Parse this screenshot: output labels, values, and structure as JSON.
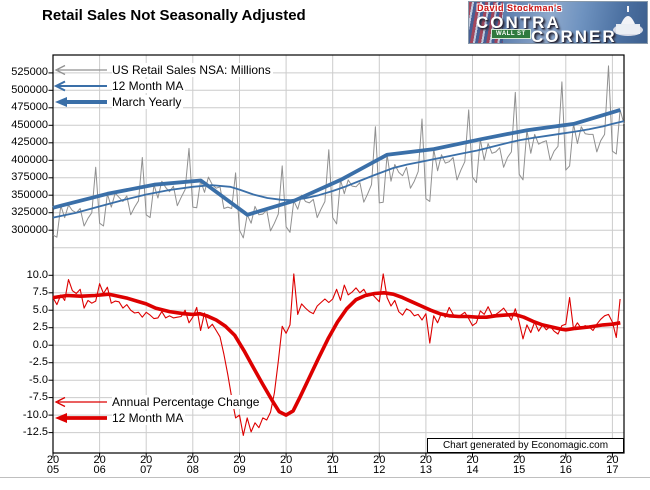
{
  "header": {
    "title": "Retail Sales Not Seasonally Adjusted"
  },
  "logo": {
    "line1": "David Stockman's",
    "line2": "CONTRA",
    "line3": "CORNER",
    "sign": "WALL ST"
  },
  "footer_note": "Chart generated by Economagic.com",
  "chart_data": {
    "type": "line",
    "title": "Retail Sales Not Seasonally Adjusted",
    "x": {
      "years": [
        "2005",
        "2006",
        "2007",
        "2008",
        "2009",
        "2010",
        "2011",
        "2012",
        "2013",
        "2014",
        "2015",
        "2016",
        "2017"
      ],
      "min": 2005,
      "max": 2017.25
    },
    "colors": {
      "sales_line": "#909090",
      "blue": "#3a6fa8",
      "red": "#dd0000",
      "grid": "#cccccc",
      "frame": "#000000"
    },
    "top_panel": {
      "ylabel": "US Retail Sales NSA: Millions",
      "y_ticks": [
        525000,
        500000,
        475000,
        450000,
        425000,
        400000,
        375000,
        350000,
        325000,
        300000
      ],
      "ylim": [
        268000,
        551000
      ],
      "legend": [
        {
          "label": "US Retail Sales NSA: Millions"
        },
        {
          "label": "12 Month MA"
        },
        {
          "label": "March Yearly"
        }
      ],
      "series": {
        "retail_sales_nsa": {
          "start": 2005,
          "freq": "monthly",
          "values": [
            293000,
            290000,
            335000,
            318000,
            336000,
            328000,
            325000,
            331000,
            306000,
            317000,
            325000,
            390000,
            310000,
            306000,
            352000,
            333000,
            353000,
            347000,
            341000,
            349000,
            322000,
            333000,
            342000,
            404000,
            322000,
            318000,
            365000,
            346000,
            370000,
            361000,
            355000,
            363000,
            335000,
            347000,
            358000,
            417000,
            333000,
            332000,
            371000,
            354000,
            376000,
            365000,
            360000,
            362000,
            331000,
            333000,
            331000,
            382000,
            300000,
            289000,
            322000,
            310000,
            334000,
            322000,
            323000,
            329000,
            299000,
            310000,
            323000,
            392000,
            305000,
            297000,
            342000,
            330000,
            350000,
            341000,
            339000,
            344000,
            318000,
            330000,
            341000,
            415000,
            318000,
            309000,
            372000,
            352000,
            372000,
            363000,
            362000,
            368000,
            340000,
            352000,
            365000,
            448000,
            339000,
            340000,
            408000,
            370000,
            394000,
            383000,
            378000,
            390000,
            360000,
            370000,
            384000,
            459000,
            345000,
            341000,
            416000,
            385000,
            408000,
            396000,
            398000,
            404000,
            372000,
            386000,
            398000,
            472000,
            376000,
            368000,
            430000,
            400000,
            424000,
            410000,
            412000,
            418000,
            390000,
            404000,
            412000,
            497000,
            380000,
            372000,
            443000,
            410000,
            437000,
            423000,
            426000,
            428000,
            400000,
            413000,
            420000,
            512000,
            386000,
            392000,
            452000,
            424000,
            448000,
            438000,
            437000,
            437000,
            412000,
            428000,
            437000,
            535000,
            413000,
            409000,
            472000,
            452000
          ]
        },
        "ma_12_month": {
          "points": [
            [
              2005.0,
              318000
            ],
            [
              2005.5,
              325000
            ],
            [
              2006.0,
              334000
            ],
            [
              2006.5,
              343000
            ],
            [
              2007.0,
              351000
            ],
            [
              2007.5,
              357500
            ],
            [
              2008.0,
              362000
            ],
            [
              2008.4,
              364500
            ],
            [
              2008.8,
              362000
            ],
            [
              2009.0,
              358000
            ],
            [
              2009.3,
              351000
            ],
            [
              2009.6,
              346000
            ],
            [
              2009.9,
              343500
            ],
            [
              2010.1,
              343000
            ],
            [
              2010.4,
              345500
            ],
            [
              2010.7,
              350000
            ],
            [
              2011.0,
              356000
            ],
            [
              2011.3,
              363000
            ],
            [
              2011.6,
              371000
            ],
            [
              2011.9,
              379000
            ],
            [
              2012.1,
              384000
            ],
            [
              2012.3,
              389000
            ],
            [
              2012.6,
              394000
            ],
            [
              2012.9,
              398000
            ],
            [
              2013.2,
              402000
            ],
            [
              2013.5,
              406000
            ],
            [
              2013.8,
              410000
            ],
            [
              2014.1,
              414000
            ],
            [
              2014.4,
              419000
            ],
            [
              2014.7,
              424000
            ],
            [
              2015.0,
              428500
            ],
            [
              2015.3,
              432000
            ],
            [
              2015.6,
              435000
            ],
            [
              2015.9,
              438000
            ],
            [
              2016.2,
              441000
            ],
            [
              2016.5,
              444500
            ],
            [
              2016.8,
              448500
            ],
            [
              2017.0,
              452000
            ],
            [
              2017.25,
              456000
            ]
          ]
        },
        "march_yearly": {
          "points": [
            [
              2005.0,
              332000
            ],
            [
              2005.17,
              335000
            ],
            [
              2006.17,
              352000
            ],
            [
              2007.17,
              365000
            ],
            [
              2008.17,
              371000
            ],
            [
              2009.17,
              322000
            ],
            [
              2010.17,
              342000
            ],
            [
              2011.17,
              372000
            ],
            [
              2012.17,
              408000
            ],
            [
              2013.17,
              416000
            ],
            [
              2014.17,
              430000
            ],
            [
              2015.17,
              443000
            ],
            [
              2016.17,
              452000
            ],
            [
              2017.17,
              472000
            ]
          ]
        }
      }
    },
    "bottom_panel": {
      "ylabel": "Annual Percentage Change",
      "y_ticks": [
        "10.0",
        "7.5",
        "5.0",
        "2.5",
        "0.0",
        "-2.5",
        "-5.0",
        "-7.5",
        "-10.0",
        "-12.5"
      ],
      "ylim": [
        -15.4,
        12.9
      ],
      "legend": [
        {
          "label": "Annual Percentage Change"
        },
        {
          "label": "12 Month MA"
        }
      ],
      "series": {
        "annual_pct_change": {
          "start": 2005,
          "freq": "monthly",
          "values": [
            6.8,
            5.8,
            7.2,
            6.4,
            9.4,
            7.8,
            7.4,
            8.0,
            5.3,
            6.4,
            6.0,
            6.3,
            8.8,
            7.4,
            8.3,
            6.0,
            6.3,
            6.2,
            5.3,
            5.8,
            5.0,
            4.6,
            4.7,
            4.0,
            4.7,
            4.3,
            3.8,
            3.9,
            4.8,
            3.9,
            4.2,
            3.9,
            4.0,
            4.1,
            5.0,
            3.2,
            4.0,
            5.4,
            2.1,
            4.6,
            2.4,
            3.0,
            2.1,
            1.2,
            -1.3,
            -4.2,
            -7.5,
            -10.4,
            -10.0,
            -12.9,
            -10.4,
            -12.4,
            -11.1,
            -11.8,
            -10.4,
            -10.7,
            -9.6,
            -6.8,
            -2.3,
            2.7,
            1.7,
            2.9,
            10.2,
            4.4,
            5.9,
            5.3,
            4.8,
            4.5,
            5.6,
            6.1,
            6.6,
            6.1,
            6.6,
            8.0,
            6.4,
            8.6,
            7.2,
            7.6,
            8.2,
            7.5,
            8.0,
            7.0,
            7.4,
            6.8,
            6.2,
            10.2,
            6.8,
            5.6,
            6.4,
            4.8,
            4.3,
            5.2,
            4.9,
            4.2,
            4.4,
            3.6,
            4.5,
            0.3,
            4.2,
            3.2,
            4.6,
            4.0,
            5.4,
            4.4,
            4.0,
            4.3,
            4.7,
            3.8,
            2.8,
            3.2,
            4.9,
            4.4,
            5.5,
            4.3,
            4.4,
            4.8,
            5.3,
            4.5,
            3.6,
            5.2,
            3.3,
            0.9,
            2.9,
            1.8,
            3.3,
            2.0,
            2.9,
            2.2,
            2.7,
            2.0,
            1.6,
            2.8,
            3.0,
            6.8,
            2.3,
            3.2,
            2.4,
            2.8,
            2.6,
            2.1,
            3.0,
            3.7,
            4.2,
            4.4,
            3.3,
            1.1,
            6.6
          ]
        },
        "ma_12_month": {
          "points": [
            [
              2005.0,
              6.8
            ],
            [
              2005.3,
              7.1
            ],
            [
              2005.6,
              7.0
            ],
            [
              2005.9,
              7.1
            ],
            [
              2006.2,
              7.3
            ],
            [
              2006.4,
              7.0
            ],
            [
              2006.6,
              6.7
            ],
            [
              2006.8,
              6.3
            ],
            [
              2007.0,
              5.9
            ],
            [
              2007.2,
              5.3
            ],
            [
              2007.5,
              4.8
            ],
            [
              2007.8,
              4.5
            ],
            [
              2008.0,
              4.4
            ],
            [
              2008.15,
              4.5
            ],
            [
              2008.3,
              4.2
            ],
            [
              2008.5,
              3.6
            ],
            [
              2008.7,
              2.7
            ],
            [
              2008.9,
              1.4
            ],
            [
              2009.1,
              -0.8
            ],
            [
              2009.3,
              -3.2
            ],
            [
              2009.5,
              -5.6
            ],
            [
              2009.7,
              -7.9
            ],
            [
              2009.85,
              -9.5
            ],
            [
              2010.0,
              -10.0
            ],
            [
              2010.15,
              -9.4
            ],
            [
              2010.3,
              -7.4
            ],
            [
              2010.5,
              -4.6
            ],
            [
              2010.7,
              -1.8
            ],
            [
              2010.9,
              0.9
            ],
            [
              2011.1,
              3.3
            ],
            [
              2011.3,
              5.2
            ],
            [
              2011.5,
              6.5
            ],
            [
              2011.7,
              7.1
            ],
            [
              2011.9,
              7.4
            ],
            [
              2012.1,
              7.5
            ],
            [
              2012.3,
              7.3
            ],
            [
              2012.5,
              6.8
            ],
            [
              2012.7,
              6.2
            ],
            [
              2012.9,
              5.6
            ],
            [
              2013.1,
              5.0
            ],
            [
              2013.3,
              4.5
            ],
            [
              2013.5,
              4.2
            ],
            [
              2013.7,
              4.1
            ],
            [
              2013.9,
              4.1
            ],
            [
              2014.1,
              4.0
            ],
            [
              2014.3,
              4.0
            ],
            [
              2014.5,
              4.2
            ],
            [
              2014.7,
              4.3
            ],
            [
              2014.9,
              4.4
            ],
            [
              2015.1,
              4.0
            ],
            [
              2015.3,
              3.4
            ],
            [
              2015.5,
              2.9
            ],
            [
              2015.7,
              2.6
            ],
            [
              2015.9,
              2.3
            ],
            [
              2016.0,
              2.2
            ],
            [
              2016.2,
              2.4
            ],
            [
              2016.5,
              2.6
            ],
            [
              2016.8,
              2.9
            ],
            [
              2017.0,
              3.0
            ],
            [
              2017.17,
              3.2
            ]
          ]
        }
      }
    }
  }
}
